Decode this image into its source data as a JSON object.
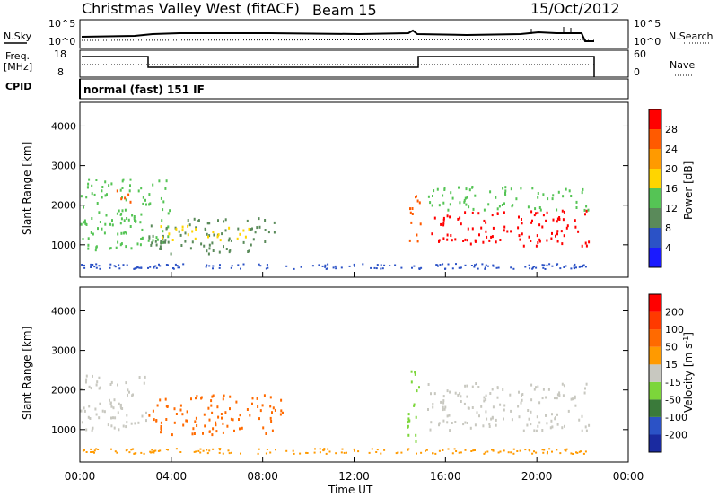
{
  "header": {
    "title": "Christmas Valley West (fitACF)",
    "beam": "Beam 15",
    "date": "15/Oct/2012"
  },
  "panels": {
    "nsky_label": "N.Sky",
    "nsearch_label": "N.Search",
    "freq_label_1": "Freq.",
    "freq_label_2": "[MHz]",
    "nave_label": "Nave",
    "cpid_label": "CPID",
    "mode": "normal (fast) 151 IF",
    "noise_ticks_left": [
      "10^5",
      "10^0"
    ],
    "noise_ticks_right": [
      "10^5",
      "10^0"
    ],
    "freq_ticks_left": [
      "18",
      "8"
    ],
    "freq_ticks_right": [
      "60",
      "0"
    ]
  },
  "chart_data": [
    {
      "type": "heatmap",
      "title": "",
      "xlabel": "Time UT",
      "ylabel": "Slant Range [km]",
      "xlim": [
        0,
        24
      ],
      "ylim": [
        180,
        4600
      ],
      "xticks": [
        "00:00",
        "04:00",
        "08:00",
        "12:00",
        "16:00",
        "20:00",
        "00:00"
      ],
      "yticks": [
        1000,
        2000,
        3000,
        4000
      ],
      "colorbar": {
        "label": "Power [dB]",
        "ticks": [
          4,
          8,
          12,
          16,
          20,
          24,
          28
        ],
        "colors": [
          "#1a1aff",
          "#2b52c6",
          "#5a8a5a",
          "#55c455",
          "#ffd500",
          "#ff9a00",
          "#ff5a00",
          "#ff0000"
        ]
      },
      "scatter_regions": [
        {
          "t0": 0.0,
          "t1": 4.0,
          "r0": 900,
          "r1": 2700,
          "color": "#55c455"
        },
        {
          "t0": 1.5,
          "t1": 2.3,
          "r0": 2100,
          "r1": 2500,
          "color": "#ff5a00"
        },
        {
          "t0": 3.0,
          "t1": 8.7,
          "r0": 800,
          "r1": 1700,
          "color": "#5a8a5a"
        },
        {
          "t0": 3.5,
          "t1": 7.5,
          "r0": 1150,
          "r1": 1500,
          "color": "#ffd500"
        },
        {
          "t0": 14.4,
          "t1": 14.9,
          "r0": 1100,
          "r1": 2600,
          "color": "#ff5a00"
        },
        {
          "t0": 15.2,
          "t1": 22.3,
          "r0": 1000,
          "r1": 1900,
          "color": "#ff0000"
        },
        {
          "t0": 15.2,
          "t1": 22.3,
          "r0": 1900,
          "r1": 2500,
          "color": "#55c455"
        }
      ]
    },
    {
      "type": "heatmap",
      "title": "",
      "xlabel": "Time UT",
      "ylabel": "Slant Range [km]",
      "xlim": [
        0,
        24
      ],
      "ylim": [
        180,
        4600
      ],
      "xticks": [
        "00:00",
        "04:00",
        "08:00",
        "12:00",
        "16:00",
        "20:00",
        "00:00"
      ],
      "yticks": [
        1000,
        2000,
        3000,
        4000
      ],
      "colorbar": {
        "label": "Velocity [m s^-1]",
        "ticks": [
          200,
          100,
          50,
          15,
          -15,
          -50,
          -100,
          -200
        ],
        "colors": [
          "#1a2aa0",
          "#2b52c6",
          "#3a7a3a",
          "#7cd63a",
          "#c8c8c0",
          "#ff9a00",
          "#ff6a00",
          "#ff3a00",
          "#ff0000"
        ]
      },
      "scatter_regions": [
        {
          "t0": 0.0,
          "t1": 3.0,
          "r0": 1000,
          "r1": 2400,
          "color": "#c8c8c0"
        },
        {
          "t0": 3.0,
          "t1": 9.0,
          "r0": 900,
          "r1": 1900,
          "color": "#ff6a00"
        },
        {
          "t0": 14.3,
          "t1": 14.9,
          "r0": 600,
          "r1": 2600,
          "color": "#7cd63a"
        },
        {
          "t0": 15.2,
          "t1": 22.3,
          "r0": 1000,
          "r1": 2200,
          "color": "#c8c8c0"
        }
      ]
    }
  ]
}
